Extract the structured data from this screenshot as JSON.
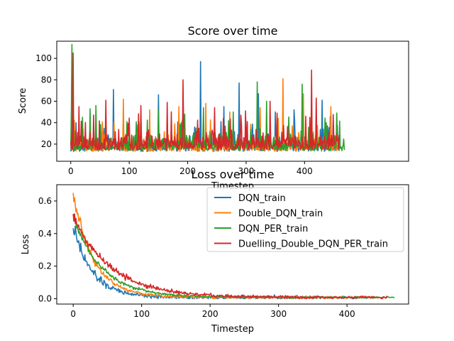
{
  "chart_data": [
    {
      "type": "line",
      "title": "Score over time",
      "xlabel": "Timestep",
      "ylabel": "Score",
      "xlim": [
        -24,
        578
      ],
      "ylim": [
        4,
        116
      ],
      "xticks": [
        0,
        100,
        200,
        300,
        400
      ],
      "yticks": [
        20,
        40,
        60,
        80,
        100
      ],
      "legend": "none",
      "series": [
        {
          "name": "DQN_train",
          "color": "#1f77b4",
          "base": 17,
          "spread": 11,
          "points": 460,
          "peaks": [
            [
              2,
              95
            ],
            [
              9,
              40
            ],
            [
              73,
              71
            ],
            [
              113,
              38
            ],
            [
              150,
              66
            ],
            [
              222,
              97
            ],
            [
              262,
              55
            ],
            [
              288,
              77
            ],
            [
              321,
              67
            ],
            [
              350,
              50
            ],
            [
              382,
              52
            ],
            [
              430,
              61
            ]
          ]
        },
        {
          "name": "Double_DQN_train",
          "color": "#ff7f0e",
          "base": 17,
          "spread": 11,
          "points": 460,
          "peaks": [
            [
              6,
              42
            ],
            [
              90,
              62
            ],
            [
              135,
              52
            ],
            [
              185,
              55
            ],
            [
              231,
              58
            ],
            [
              272,
              50
            ],
            [
              324,
              54
            ],
            [
              355,
              44
            ],
            [
              363,
              81
            ],
            [
              398,
              67
            ],
            [
              445,
              55
            ]
          ]
        },
        {
          "name": "DQN_PER_train",
          "color": "#2ca02c",
          "base": 18,
          "spread": 12,
          "points": 470,
          "peaks": [
            [
              2,
              113
            ],
            [
              20,
              45
            ],
            [
              33,
              53
            ],
            [
              43,
              56
            ],
            [
              96,
              41
            ],
            [
              150,
              52
            ],
            [
              227,
              54
            ],
            [
              278,
              50
            ],
            [
              319,
              78
            ],
            [
              335,
              60
            ],
            [
              396,
              76
            ],
            [
              455,
              49
            ]
          ]
        },
        {
          "name": "Duelling_Double_DQN_PER_train",
          "color": "#d62728",
          "base": 19,
          "spread": 13,
          "points": 460,
          "peaks": [
            [
              4,
              105
            ],
            [
              14,
              55
            ],
            [
              60,
              61
            ],
            [
              120,
              56
            ],
            [
              165,
              59
            ],
            [
              192,
              80
            ],
            [
              246,
              54
            ],
            [
              299,
              51
            ],
            [
              341,
              60
            ],
            [
              412,
              89
            ],
            [
              420,
              63
            ]
          ]
        }
      ]
    },
    {
      "type": "line",
      "title": "Loss over time",
      "xlabel": "Timestep",
      "ylabel": "Loss",
      "xlim": [
        -24,
        490
      ],
      "ylim": [
        -0.033,
        0.7
      ],
      "xticks": [
        0,
        100,
        200,
        300,
        400
      ],
      "yticks": [
        0.0,
        0.2,
        0.4,
        0.6
      ],
      "legend": "upper right",
      "series": [
        {
          "name": "DQN_train",
          "color": "#1f77b4",
          "start": 0.43,
          "tau": 28,
          "noise": 0.025,
          "points": 440
        },
        {
          "name": "Double_DQN_train",
          "color": "#ff7f0e",
          "start": 0.64,
          "tau": 30,
          "noise": 0.02,
          "points": 440
        },
        {
          "name": "DQN_PER_train",
          "color": "#2ca02c",
          "start": 0.5,
          "tau": 42,
          "noise": 0.012,
          "points": 470
        },
        {
          "name": "Duelling_Double_DQN_PER_train",
          "color": "#d62728",
          "start": 0.5,
          "tau": 55,
          "noise": 0.018,
          "points": 460
        }
      ]
    }
  ]
}
